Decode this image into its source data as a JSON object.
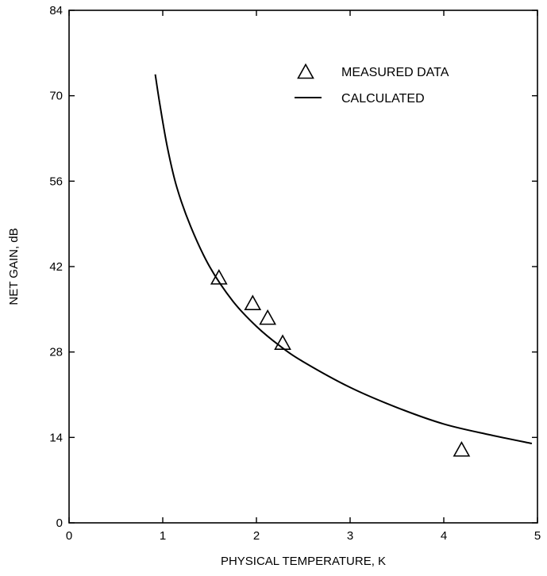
{
  "chart_data": {
    "type": "line",
    "xlabel": "PHYSICAL TEMPERATURE, K",
    "ylabel": "NET GAIN, dB",
    "xlim": [
      0,
      5
    ],
    "ylim": [
      0,
      84
    ],
    "xticks": [
      0,
      1,
      2,
      3,
      4,
      5
    ],
    "yticks": [
      0,
      14,
      28,
      42,
      56,
      70,
      84
    ],
    "x_tick_labels": [
      "0",
      "1",
      "2",
      "3",
      "4",
      "5"
    ],
    "y_tick_labels": [
      "0",
      "14",
      "28",
      "42",
      "56",
      "70",
      "84"
    ],
    "grid": false,
    "legend_position": "top-right",
    "series": [
      {
        "name": "MEASURED DATA",
        "kind": "scatter",
        "marker": "triangle-open",
        "color": "#000000",
        "points": [
          {
            "x": 1.6,
            "y": 40.0
          },
          {
            "x": 1.96,
            "y": 35.8
          },
          {
            "x": 2.12,
            "y": 33.4
          },
          {
            "x": 2.28,
            "y": 29.3
          },
          {
            "x": 4.19,
            "y": 11.8
          }
        ]
      },
      {
        "name": "CALCULATED",
        "kind": "line",
        "color": "#000000",
        "points": [
          {
            "x": 0.92,
            "y": 73.5
          },
          {
            "x": 0.97,
            "y": 68.5
          },
          {
            "x": 1.05,
            "y": 61.5
          },
          {
            "x": 1.15,
            "y": 55.0
          },
          {
            "x": 1.3,
            "y": 48.5
          },
          {
            "x": 1.5,
            "y": 42.0
          },
          {
            "x": 1.75,
            "y": 36.3
          },
          {
            "x": 2.0,
            "y": 32.2
          },
          {
            "x": 2.25,
            "y": 29.0
          },
          {
            "x": 2.5,
            "y": 26.4
          },
          {
            "x": 3.0,
            "y": 22.2
          },
          {
            "x": 3.5,
            "y": 18.9
          },
          {
            "x": 4.0,
            "y": 16.2
          },
          {
            "x": 4.5,
            "y": 14.4
          },
          {
            "x": 4.94,
            "y": 13.0
          }
        ]
      }
    ]
  }
}
